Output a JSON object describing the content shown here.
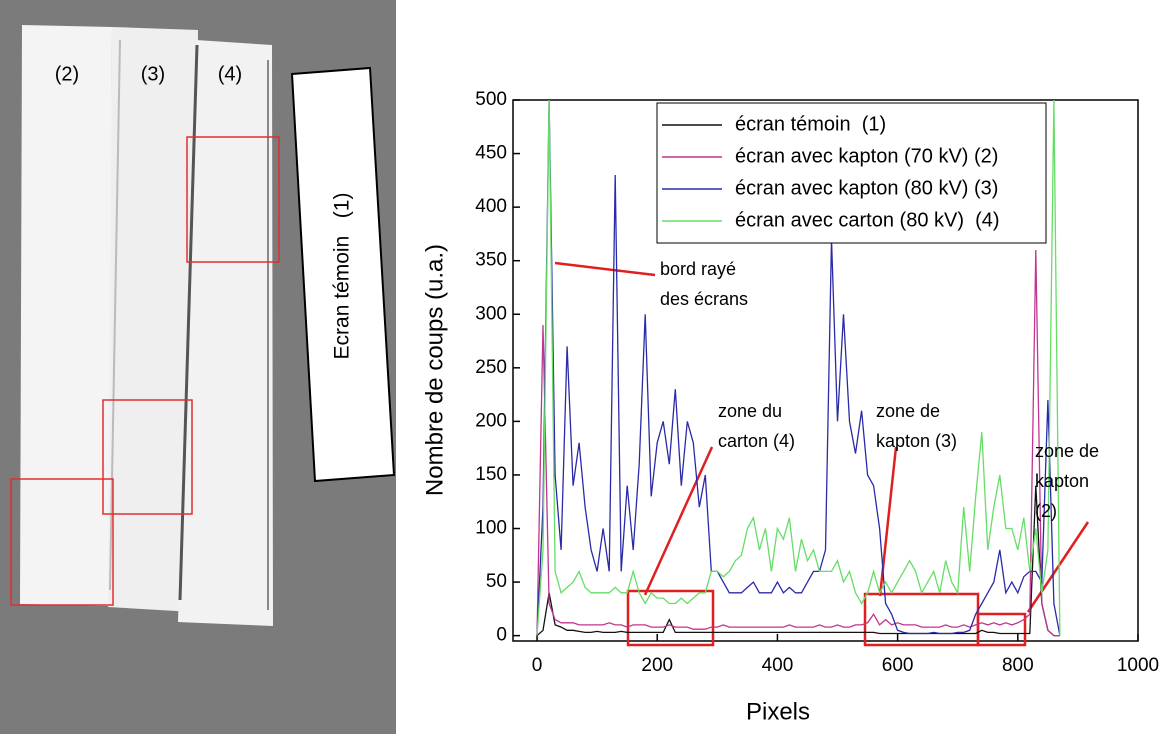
{
  "image": {
    "labels": [
      "(2)",
      "(3)",
      "(4)"
    ],
    "reference": "Ecran témoin   (1)"
  },
  "chart_data": {
    "type": "line",
    "xlabel": "Pixels",
    "ylabel": "Nombre de coups (u.a.)",
    "xlim": [
      -40,
      1000
    ],
    "ylim": [
      -5,
      500
    ],
    "xticks": [
      0,
      200,
      400,
      600,
      800,
      1000
    ],
    "yticks": [
      0,
      50,
      100,
      150,
      200,
      250,
      300,
      350,
      400,
      450,
      500
    ],
    "legend": "top-right",
    "x": [
      0,
      10,
      20,
      30,
      40,
      50,
      60,
      70,
      80,
      90,
      100,
      110,
      120,
      130,
      140,
      150,
      160,
      170,
      180,
      190,
      200,
      210,
      220,
      230,
      240,
      250,
      260,
      270,
      280,
      290,
      300,
      310,
      320,
      330,
      340,
      350,
      360,
      370,
      380,
      390,
      400,
      410,
      420,
      430,
      440,
      450,
      460,
      470,
      480,
      490,
      500,
      510,
      520,
      530,
      540,
      550,
      560,
      570,
      580,
      590,
      600,
      610,
      620,
      630,
      640,
      650,
      660,
      670,
      680,
      690,
      700,
      710,
      720,
      730,
      740,
      750,
      760,
      770,
      780,
      790,
      800,
      810,
      820,
      830,
      840,
      850,
      860,
      870
    ],
    "series": [
      {
        "name": "écran témoin  (1)",
        "color": "#111111",
        "values": [
          0,
          5,
          40,
          10,
          8,
          5,
          5,
          4,
          3,
          3,
          4,
          3,
          3,
          3,
          4,
          3,
          3,
          3,
          3,
          3,
          3,
          3,
          15,
          3,
          3,
          3,
          3,
          3,
          3,
          3,
          3,
          3,
          3,
          3,
          3,
          3,
          3,
          3,
          3,
          3,
          3,
          3,
          3,
          3,
          3,
          3,
          3,
          3,
          3,
          3,
          3,
          3,
          3,
          3,
          3,
          3,
          3,
          2,
          2,
          2,
          2,
          2,
          2,
          2,
          2,
          2,
          2,
          2,
          2,
          2,
          2,
          2,
          2,
          2,
          5,
          3,
          3,
          2,
          2,
          2,
          2,
          2,
          2,
          140,
          30,
          5,
          0,
          0
        ]
      },
      {
        "name": "écran avec kapton (70 kV) (2)",
        "color": "#c0358f",
        "values": [
          0,
          290,
          30,
          15,
          12,
          12,
          12,
          10,
          10,
          10,
          10,
          10,
          12,
          10,
          10,
          8,
          10,
          10,
          10,
          8,
          8,
          8,
          10,
          8,
          8,
          8,
          6,
          6,
          6,
          8,
          8,
          10,
          8,
          8,
          8,
          8,
          8,
          8,
          8,
          8,
          8,
          8,
          10,
          8,
          8,
          8,
          8,
          10,
          8,
          8,
          10,
          8,
          8,
          10,
          10,
          12,
          20,
          10,
          15,
          10,
          12,
          10,
          10,
          10,
          8,
          8,
          8,
          8,
          10,
          8,
          8,
          10,
          8,
          10,
          12,
          10,
          12,
          10,
          12,
          10,
          12,
          15,
          20,
          360,
          30,
          5,
          0,
          0
        ]
      },
      {
        "name": "écran avec kapton (80 kV) (3)",
        "color": "#2a2aa8",
        "values": [
          0,
          120,
          500,
          150,
          80,
          270,
          140,
          180,
          120,
          80,
          60,
          100,
          60,
          430,
          60,
          140,
          80,
          160,
          300,
          130,
          180,
          200,
          160,
          230,
          140,
          200,
          180,
          120,
          150,
          60,
          60,
          50,
          40,
          40,
          40,
          45,
          50,
          40,
          40,
          40,
          50,
          40,
          45,
          40,
          40,
          50,
          60,
          60,
          80,
          370,
          200,
          300,
          200,
          170,
          210,
          150,
          140,
          100,
          30,
          20,
          5,
          3,
          2,
          2,
          2,
          2,
          3,
          2,
          2,
          2,
          3,
          3,
          5,
          20,
          30,
          40,
          50,
          80,
          40,
          50,
          40,
          55,
          60,
          60,
          50,
          220,
          30,
          0
        ]
      },
      {
        "name": "écran avec carton (80 kV)  (4)",
        "color": "#66dd66",
        "values": [
          0,
          80,
          500,
          60,
          40,
          45,
          50,
          60,
          45,
          40,
          40,
          40,
          40,
          45,
          40,
          40,
          60,
          40,
          30,
          40,
          35,
          35,
          30,
          30,
          35,
          30,
          35,
          40,
          40,
          60,
          60,
          55,
          60,
          70,
          75,
          100,
          110,
          80,
          100,
          60,
          100,
          90,
          110,
          60,
          90,
          70,
          80,
          60,
          60,
          60,
          70,
          50,
          60,
          40,
          30,
          40,
          60,
          40,
          50,
          40,
          50,
          60,
          70,
          60,
          40,
          50,
          60,
          40,
          70,
          50,
          40,
          120,
          60,
          130,
          190,
          80,
          120,
          150,
          100,
          100,
          80,
          110,
          60,
          100,
          40,
          80,
          500,
          0
        ]
      }
    ],
    "annotations": [
      [
        "bord rayé",
        "des écrans"
      ],
      [
        "zone du",
        "carton (4)"
      ],
      [
        "zone de",
        "kapton (3)"
      ],
      [
        "zone de",
        "kapton",
        "(2)"
      ]
    ]
  }
}
